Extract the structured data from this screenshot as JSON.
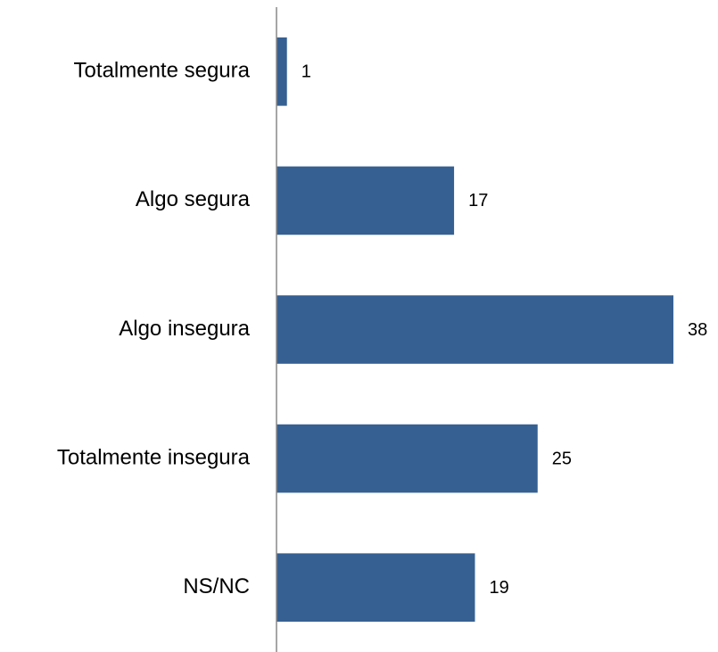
{
  "chart_data": {
    "type": "bar",
    "orientation": "horizontal",
    "categories": [
      "Totalmente segura",
      "Algo segura",
      "Algo insegura",
      "Totalmente insegura",
      "NS/NC"
    ],
    "values": [
      1,
      17,
      38,
      25,
      19
    ],
    "color": "#366092"
  }
}
